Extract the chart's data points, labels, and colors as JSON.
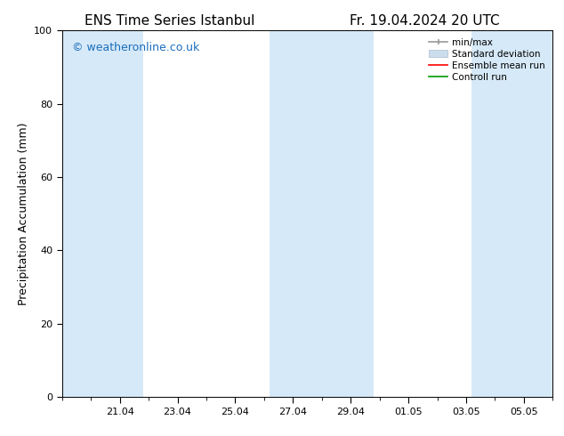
{
  "title_left": "ENS Time Series Istanbul",
  "title_right": "Fr. 19.04.2024 20 UTC",
  "ylabel": "Precipitation Accumulation (mm)",
  "ylim": [
    0,
    100
  ],
  "yticks": [
    0,
    20,
    40,
    60,
    80,
    100
  ],
  "background_color": "#ffffff",
  "plot_bg_color": "#ffffff",
  "watermark": "© weatheronline.co.uk",
  "watermark_color": "#1a6ebd",
  "x_tick_labels": [
    "21.04",
    "23.04",
    "25.04",
    "27.04",
    "29.04",
    "01.05",
    "03.05",
    "05.05"
  ],
  "x_tick_positions": [
    2,
    4,
    6,
    8,
    10,
    12,
    14,
    16
  ],
  "xlim": [
    0,
    17
  ],
  "shade_bands": [
    {
      "x_start": 0.0,
      "x_end": 2.8,
      "color": "#d6e9f8"
    },
    {
      "x_start": 7.2,
      "x_end": 10.8,
      "color": "#d6e9f8"
    },
    {
      "x_start": 14.2,
      "x_end": 17.0,
      "color": "#d6e9f8"
    }
  ],
  "legend_labels": [
    "min/max",
    "Standard deviation",
    "Ensemble mean run",
    "Controll run"
  ],
  "legend_colors_line": [
    "#999999",
    "#bbbbbb",
    "#ff0000",
    "#009900"
  ],
  "title_fontsize": 11,
  "label_fontsize": 9,
  "tick_fontsize": 8,
  "watermark_fontsize": 9,
  "legend_fontsize": 7.5
}
